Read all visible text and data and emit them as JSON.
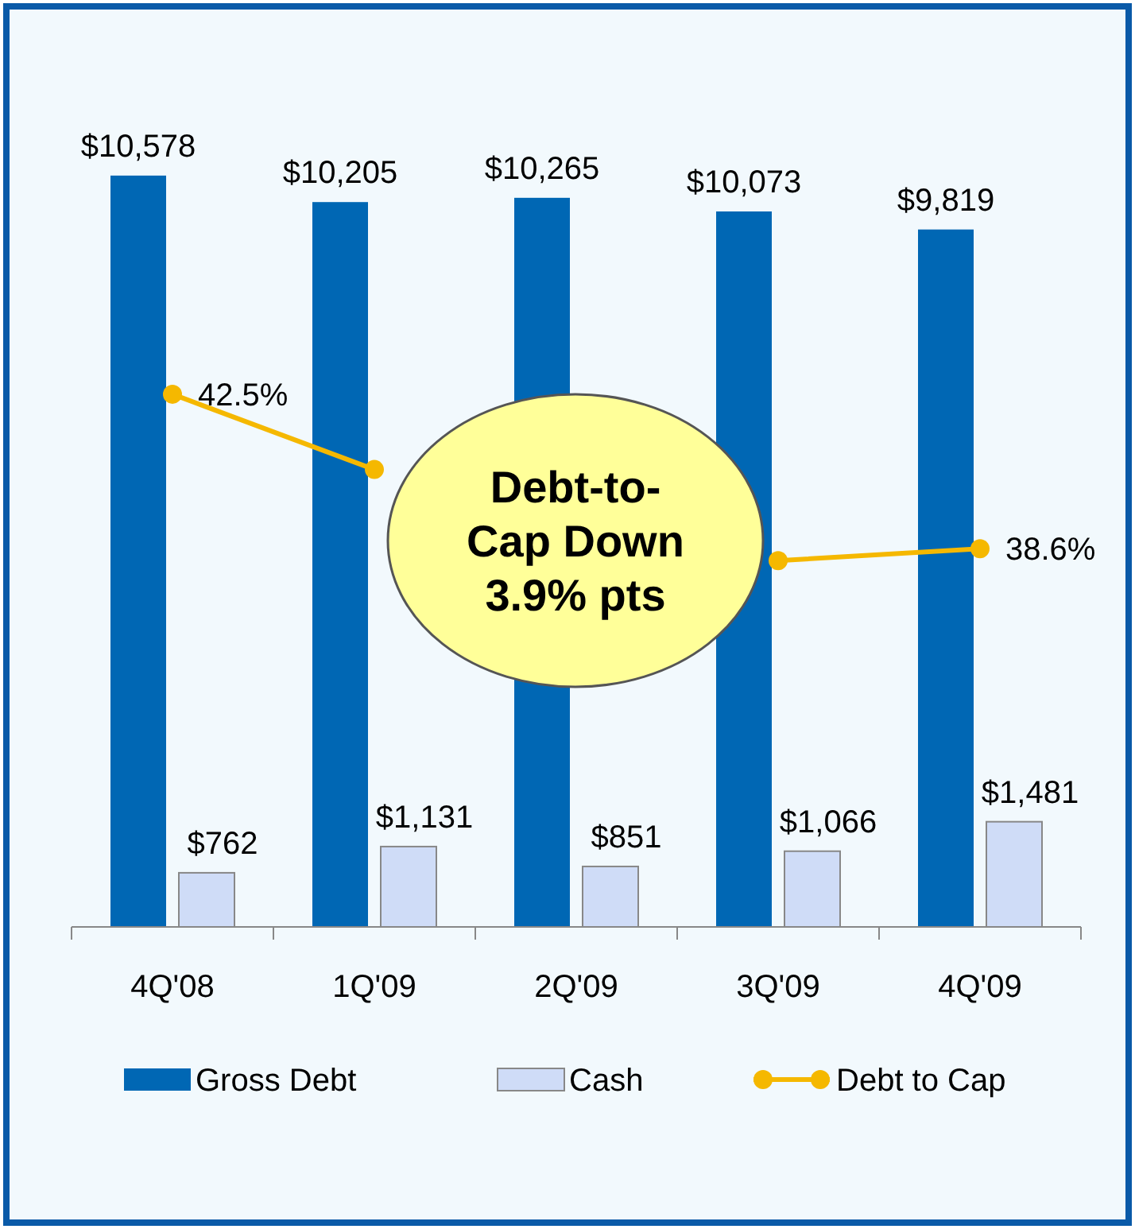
{
  "chart_data": {
    "type": "bar",
    "categories": [
      "4Q'08",
      "1Q'09",
      "2Q'09",
      "3Q'09",
      "4Q'09"
    ],
    "series": [
      {
        "name": "Gross Debt",
        "color": "#0067b4",
        "values": [
          10578,
          10205,
          10265,
          10073,
          9819
        ],
        "value_labels": [
          "$10,578",
          "$10,205",
          "$10,265",
          "$10,073",
          "$9,819"
        ]
      },
      {
        "name": "Cash",
        "color": "#cfdcf7",
        "values": [
          762,
          1131,
          851,
          1066,
          1481
        ],
        "value_labels": [
          "$762",
          "$1,131",
          "$851",
          "$1,066",
          "$1,481"
        ]
      },
      {
        "name": "Debt to Cap",
        "type": "line",
        "axis": "y2",
        "color": "#f5b800",
        "values": [
          42.5,
          40.6,
          null,
          38.3,
          38.6
        ],
        "value_labels": [
          "42.5%",
          null,
          null,
          null,
          "38.6%"
        ]
      }
    ],
    "tick_labels": "x",
    "legend": "bottom",
    "marker": "circle",
    "annotations": [
      "Debt-to-Cap Down 3.9% pts"
    ]
  }
}
